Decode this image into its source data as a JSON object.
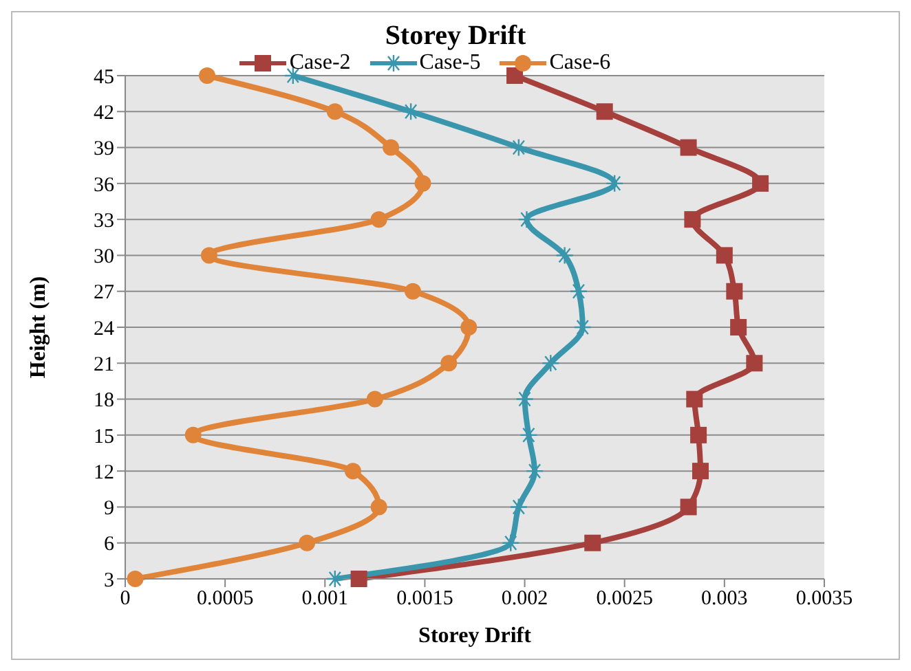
{
  "chart_data": {
    "type": "line",
    "title": "Storey Drift",
    "xlabel": "Storey Drift",
    "ylabel": "Height (m)",
    "orientation": "horizontal",
    "categories": [
      "45",
      "42",
      "39",
      "36",
      "33",
      "30",
      "27",
      "24",
      "21",
      "18",
      "15",
      "12",
      "9",
      "6",
      "3"
    ],
    "series": [
      {
        "name": "Case-2",
        "color": "#a5403d",
        "marker": "square",
        "values": [
          0.00195,
          0.0024,
          0.00282,
          0.00318,
          0.00284,
          0.003,
          0.00305,
          0.00307,
          0.00315,
          0.00285,
          0.00287,
          0.00288,
          0.00282,
          0.00234,
          0.00117
        ]
      },
      {
        "name": "Case-5",
        "color": "#3a96ad",
        "marker": "cross",
        "values": [
          0.00084,
          0.00143,
          0.00197,
          0.00245,
          0.00201,
          0.0022,
          0.00227,
          0.00229,
          0.00213,
          0.002,
          0.00202,
          0.00205,
          0.00197,
          0.00193,
          0.00105
        ]
      },
      {
        "name": "Case-6",
        "color": "#e0843a",
        "marker": "circle",
        "values": [
          0.00041,
          0.00105,
          0.00133,
          0.00149,
          0.00127,
          0.00042,
          0.00144,
          0.00172,
          0.00162,
          0.00125,
          0.00034,
          0.00114,
          0.00127,
          0.00091,
          5e-05
        ]
      }
    ],
    "xlim": [
      0,
      0.0035
    ],
    "xticks": [
      0,
      0.0005,
      0.001,
      0.0015,
      0.002,
      0.0025,
      0.003,
      0.0035
    ],
    "grid": "y",
    "legend": "top"
  }
}
